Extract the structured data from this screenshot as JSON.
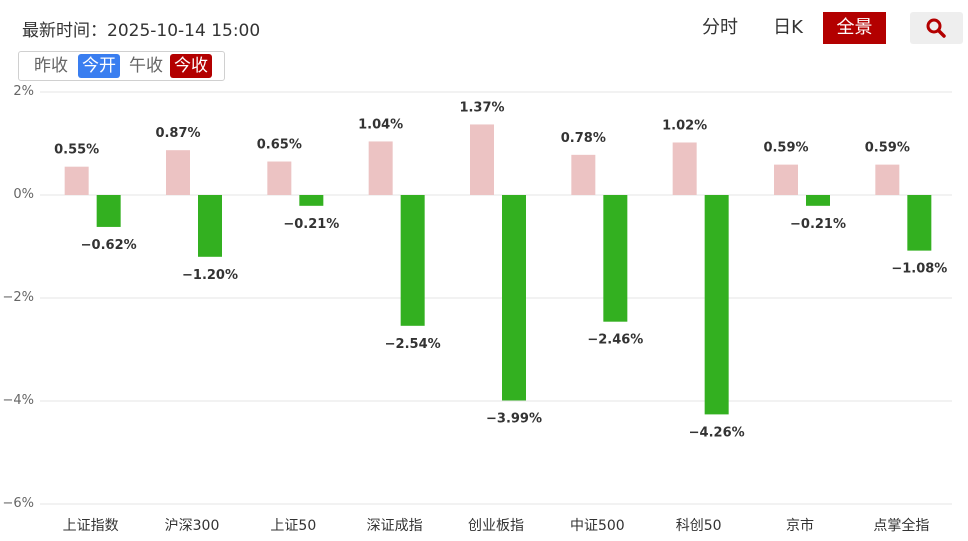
{
  "header": {
    "update_label": "最新时间：",
    "update_time": "2025-10-14 15:00",
    "tabs": [
      {
        "label": "分时",
        "active": false
      },
      {
        "label": "日K",
        "active": false
      },
      {
        "label": "全景",
        "active": true
      }
    ],
    "search_icon": "search-icon"
  },
  "toggles": [
    {
      "label": "昨收",
      "style": "plain"
    },
    {
      "label": "今开",
      "style": "blue"
    },
    {
      "label": "午收",
      "style": "plain"
    },
    {
      "label": "今收",
      "style": "red"
    }
  ],
  "colors": {
    "pink_bar": "#ecc3c3",
    "green_bar": "#33b020",
    "accent_red": "#b30000",
    "accent_blue": "#3a7ef0"
  },
  "chart_data": {
    "type": "bar",
    "categories": [
      "上证指数",
      "沪深300",
      "上证50",
      "深证成指",
      "创业板指",
      "中证500",
      "科创50",
      "京市",
      "点掌全指"
    ],
    "series": [
      {
        "values": [
          0.55,
          0.87,
          0.65,
          1.04,
          1.37,
          0.78,
          1.02,
          0.59,
          0.59
        ],
        "color": "#ecc3c3"
      },
      {
        "values": [
          -0.62,
          -1.2,
          -0.21,
          -2.54,
          -3.99,
          -2.46,
          -4.26,
          -0.21,
          -1.08
        ],
        "color": "#33b020"
      }
    ],
    "value_labels": [
      [
        "0.55%",
        "0.87%",
        "0.65%",
        "1.04%",
        "1.37%",
        "0.78%",
        "1.02%",
        "0.59%",
        "0.59%"
      ],
      [
        "−0.62%",
        "−1.20%",
        "−0.21%",
        "−2.54%",
        "−3.99%",
        "−2.46%",
        "−4.26%",
        "−0.21%",
        "−1.08%"
      ]
    ],
    "y_ticks": [
      2,
      0,
      -2,
      -4,
      -6
    ],
    "y_tick_labels": [
      "2%",
      "0%",
      "−2%",
      "−4%",
      "−6%"
    ],
    "ylim": [
      -6,
      2
    ],
    "grid": true
  }
}
